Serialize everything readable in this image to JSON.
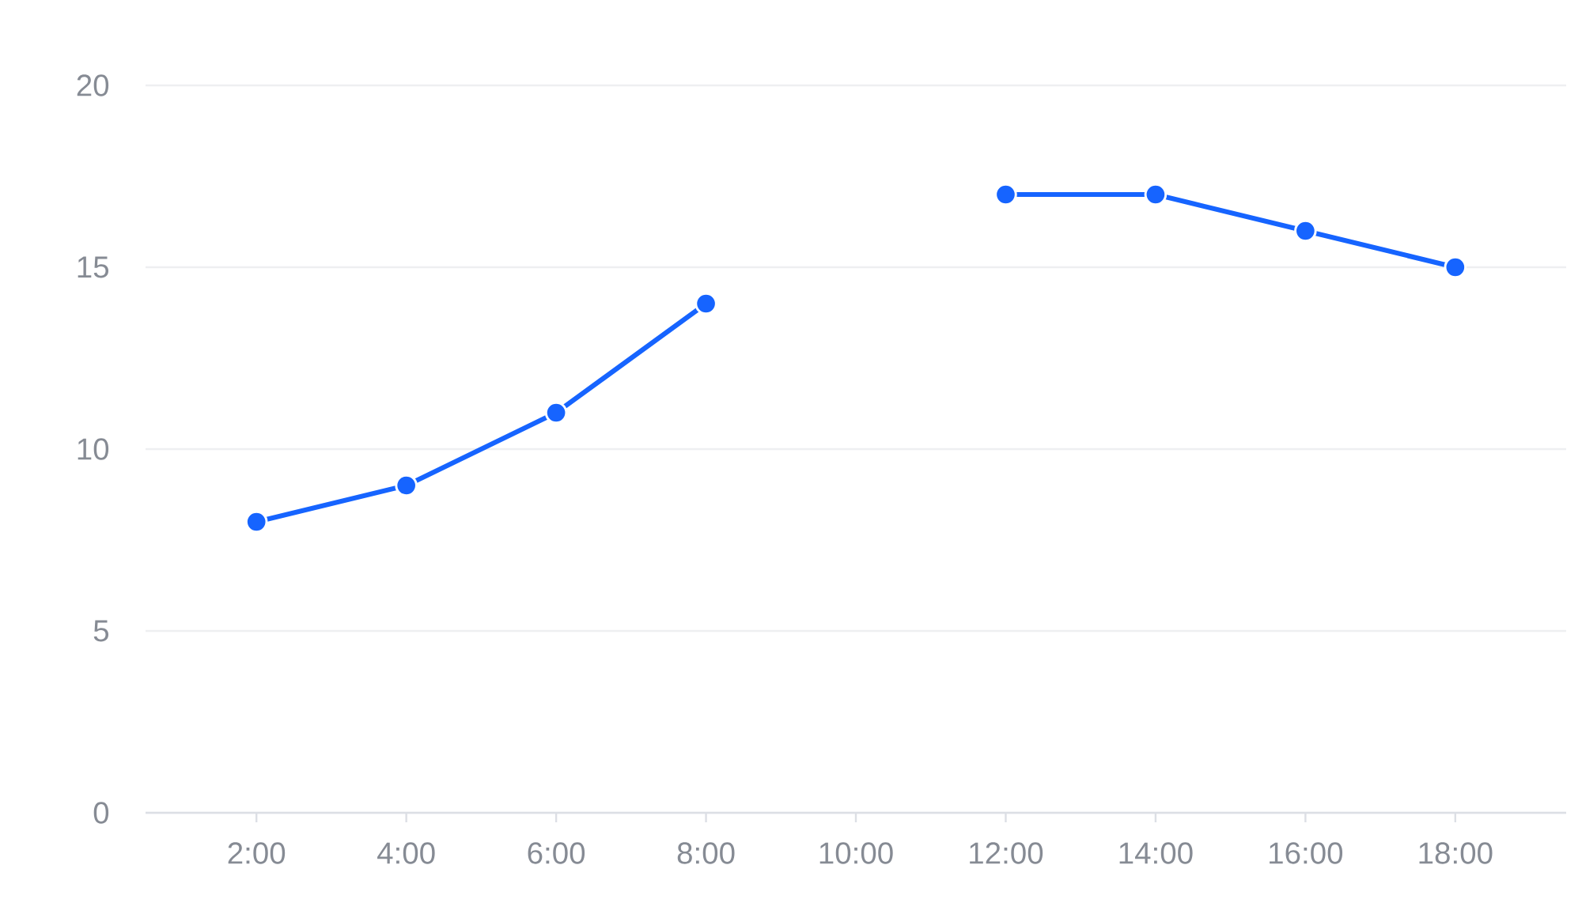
{
  "chart_data": {
    "type": "line",
    "categories": [
      "2:00",
      "4:00",
      "6:00",
      "8:00",
      "10:00",
      "12:00",
      "14:00",
      "16:00",
      "18:00"
    ],
    "values": [
      8,
      9,
      11,
      14,
      null,
      17,
      17,
      16,
      15
    ],
    "color": "#1664ff",
    "ylim": [
      0,
      20
    ],
    "yticks": [
      0,
      5,
      10,
      15,
      20
    ],
    "grid": "y",
    "marker": "circle"
  }
}
